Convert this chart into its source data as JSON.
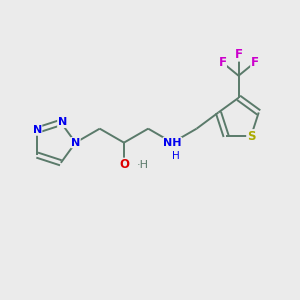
{
  "background_color": "#ebebeb",
  "bond_color": "#5a7a6a",
  "atom_colors": {
    "N": "#0000EE",
    "O": "#DD0000",
    "S": "#AAAA00",
    "F": "#CC00CC",
    "C": "#5a7a6a",
    "H": "#5a7a6a"
  },
  "figsize": [
    3.0,
    3.0
  ],
  "dpi": 100
}
